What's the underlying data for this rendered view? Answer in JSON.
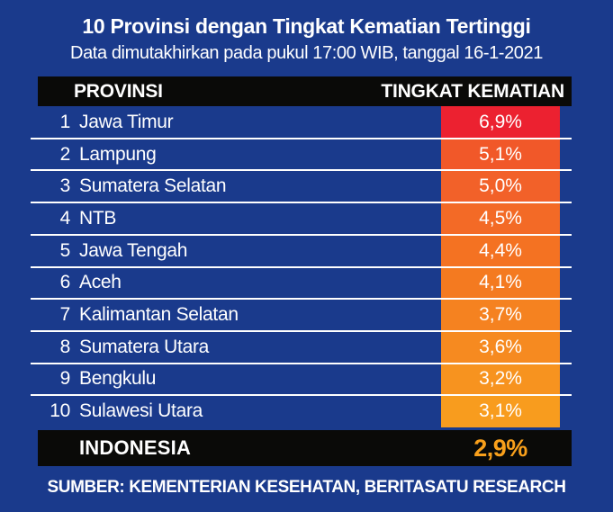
{
  "title": "10 Provinsi dengan Tingkat Kematian Tertinggi",
  "subtitle": "Data dimutakhirkan pada pukul 17:00 WIB, tanggal 16-1-2021",
  "table": {
    "header": {
      "col_province": "PROVINSI",
      "col_rate": "TINGKAT KEMATIAN"
    },
    "rows": [
      {
        "rank": "1",
        "province": "Jawa Timur",
        "rate": "6,9%",
        "color": "#EC2130"
      },
      {
        "rank": "2",
        "province": "Lampung",
        "rate": "5,1%",
        "color": "#F15829"
      },
      {
        "rank": "3",
        "province": "Sumatera Selatan",
        "rate": "5,0%",
        "color": "#F26129"
      },
      {
        "rank": "4",
        "province": "NTB",
        "rate": "4,5%",
        "color": "#F36A26"
      },
      {
        "rank": "5",
        "province": "Jawa Tengah",
        "rate": "4,4%",
        "color": "#F47222"
      },
      {
        "rank": "6",
        "province": "Aceh",
        "rate": "4,1%",
        "color": "#F47A20"
      },
      {
        "rank": "7",
        "province": "Kalimantan Selatan",
        "rate": "3,7%",
        "color": "#F58220"
      },
      {
        "rank": "8",
        "province": "Sumatera Utara",
        "rate": "3,6%",
        "color": "#F68A20"
      },
      {
        "rank": "9",
        "province": "Bengkulu",
        "rate": "3,2%",
        "color": "#F7931F"
      },
      {
        "rank": "10",
        "province": "Sulawesi Utara",
        "rate": "3,1%",
        "color": "#F89C1E"
      }
    ],
    "footer": {
      "label": "INDONESIA",
      "rate": "2,9%",
      "rate_color": "#F9A01B"
    }
  },
  "source": "SUMBER: KEMENTERIAN KESEHATAN, BERITASATU RESEARCH",
  "colors": {
    "background": "#1A3A8C",
    "bar_background": "#0A0A08",
    "text": "#FFFFFF",
    "divider": "#FFFFFF"
  },
  "chart_data": {
    "type": "table",
    "title": "10 Provinsi dengan Tingkat Kematian Tertinggi",
    "subtitle": "Data dimutakhirkan pada pukul 17:00 WIB, tanggal 16-1-2021",
    "columns": [
      "PROVINSI",
      "TINGKAT KEMATIAN"
    ],
    "categories": [
      "Jawa Timur",
      "Lampung",
      "Sumatera Selatan",
      "NTB",
      "Jawa Tengah",
      "Aceh",
      "Kalimantan Selatan",
      "Sumatera Utara",
      "Bengkulu",
      "Sulawesi Utara"
    ],
    "values": [
      6.9,
      5.1,
      5.0,
      4.5,
      4.4,
      4.1,
      3.7,
      3.6,
      3.2,
      3.1
    ],
    "unit": "%",
    "national_total": {
      "label": "INDONESIA",
      "value": 2.9
    },
    "source": "SUMBER: KEMENTERIAN KESEHATAN, BERITASATU RESEARCH",
    "legend_position": "none",
    "grid": false
  }
}
